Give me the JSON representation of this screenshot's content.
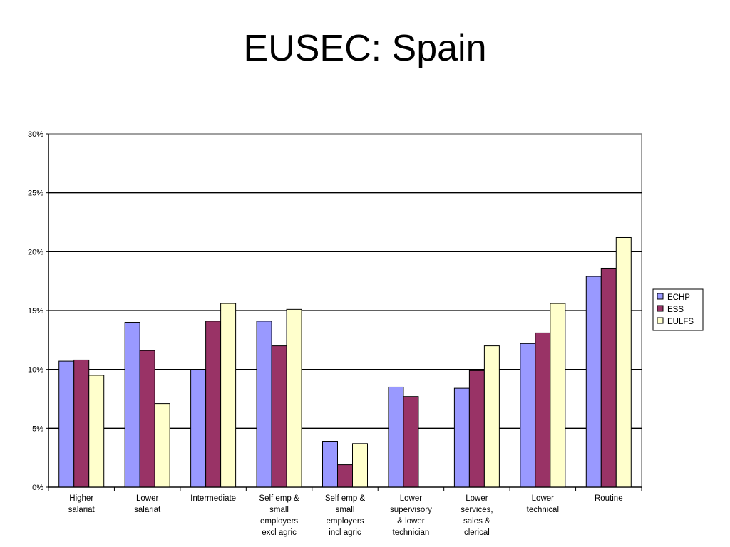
{
  "title": "EUSEC: Spain",
  "chart_data": {
    "type": "bar",
    "categories": [
      [
        "Higher",
        "salariat"
      ],
      [
        "Lower",
        "salariat"
      ],
      [
        "Intermediate"
      ],
      [
        "Self emp &",
        "small",
        "employers",
        "excl agric"
      ],
      [
        "Self emp &",
        "small",
        "employers",
        "incl agric"
      ],
      [
        "Lower",
        "supervisory",
        "& lower",
        "technician"
      ],
      [
        "Lower",
        "services,",
        "sales &",
        "clerical"
      ],
      [
        "Lower",
        "technical"
      ],
      [
        "Routine"
      ]
    ],
    "series": [
      {
        "name": "ECHP",
        "color": "#9999ff",
        "values": [
          10.7,
          14.0,
          10.0,
          14.1,
          3.9,
          8.5,
          8.4,
          12.2,
          17.9
        ]
      },
      {
        "name": "ESS",
        "color": "#993366",
        "values": [
          10.8,
          11.6,
          14.1,
          12.0,
          1.9,
          7.7,
          9.9,
          13.1,
          18.6
        ]
      },
      {
        "name": "EULFS",
        "color": "#ffffcc",
        "values": [
          9.5,
          7.1,
          15.6,
          15.1,
          3.7,
          null,
          12.0,
          15.6,
          21.2
        ]
      }
    ],
    "yticks": [
      "0%",
      "5%",
      "10%",
      "15%",
      "20%",
      "25%",
      "30%"
    ],
    "ylim": [
      0,
      30
    ],
    "ygrid": true,
    "legend_position": "right"
  }
}
